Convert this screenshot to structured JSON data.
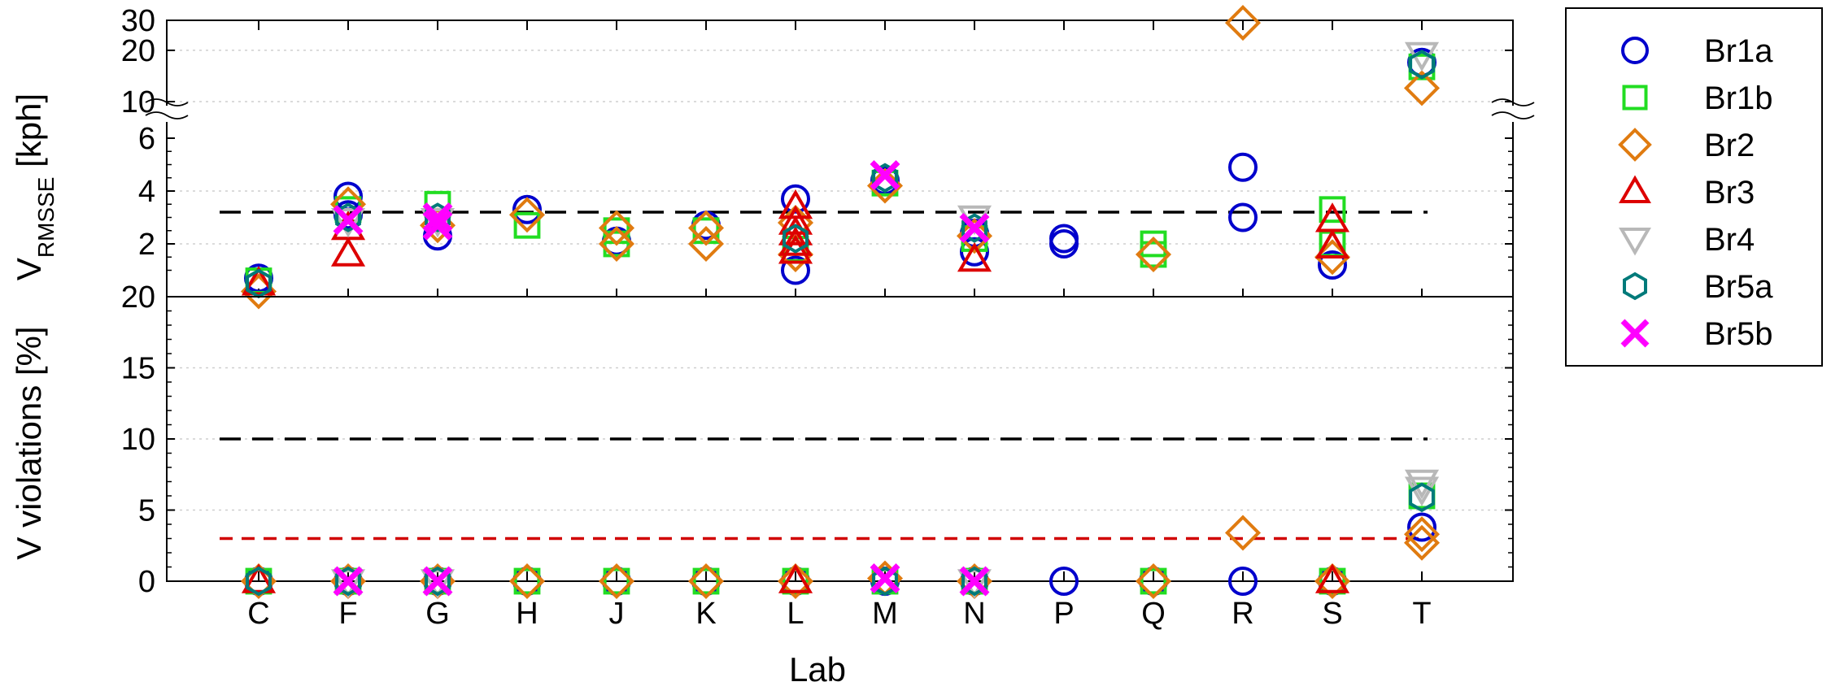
{
  "chart_data": [
    {
      "type": "scatter",
      "ylabel_main": "V",
      "ylabel_sub": "RMSSE",
      "ylabel_unit": " [kph]",
      "xlabel": "",
      "categories": [
        "C",
        "F",
        "G",
        "H",
        "J",
        "K",
        "L",
        "M",
        "N",
        "P",
        "Q",
        "R",
        "S",
        "T"
      ],
      "scale": "broken-axis",
      "y_ticks_lower": [
        "2",
        "4",
        "6"
      ],
      "y_ticks_upper": [
        "10",
        "20",
        "30"
      ],
      "y_bottom_label": "20",
      "ylim_lower": [
        0,
        6
      ],
      "ylim_upper": [
        10,
        30
      ],
      "threshold": 3.2,
      "series": [
        {
          "name": "Br1a",
          "points": [
            [
              "C",
              0.7
            ],
            [
              "F",
              3.8
            ],
            [
              "F",
              3.1
            ],
            [
              "G",
              2.3
            ],
            [
              "H",
              3.3
            ],
            [
              "J",
              2.1
            ],
            [
              "K",
              2.7
            ],
            [
              "L",
              3.7
            ],
            [
              "L",
              1.0
            ],
            [
              "M",
              4.4
            ],
            [
              "N",
              1.7
            ],
            [
              "N",
              2.4
            ],
            [
              "P",
              2.2
            ],
            [
              "P",
              2.0
            ],
            [
              "R",
              4.9
            ],
            [
              "R",
              3.0
            ],
            [
              "S",
              1.2
            ],
            [
              "T",
              17
            ]
          ]
        },
        {
          "name": "Br1b",
          "points": [
            [
              "C",
              0.6
            ],
            [
              "F",
              3.3
            ],
            [
              "G",
              3.5
            ],
            [
              "H",
              2.7
            ],
            [
              "J",
              2.0
            ],
            [
              "J",
              2.5
            ],
            [
              "K",
              2.5
            ],
            [
              "L",
              1.8
            ],
            [
              "M",
              4.3
            ],
            [
              "N",
              2.2
            ],
            [
              "Q",
              2.0
            ],
            [
              "Q",
              1.6
            ],
            [
              "S",
              3.3
            ],
            [
              "S",
              2.0
            ],
            [
              "T",
              16
            ]
          ]
        },
        {
          "name": "Br2",
          "points": [
            [
              "C",
              0.2
            ],
            [
              "F",
              3.5
            ],
            [
              "G",
              2.7
            ],
            [
              "H",
              3.1
            ],
            [
              "J",
              2.6
            ],
            [
              "J",
              2.0
            ],
            [
              "K",
              2.6
            ],
            [
              "K",
              2.0
            ],
            [
              "L",
              2.8
            ],
            [
              "L",
              1.6
            ],
            [
              "M",
              4.2
            ],
            [
              "N",
              2.3
            ],
            [
              "Q",
              1.6
            ],
            [
              "R",
              29
            ],
            [
              "S",
              1.5
            ],
            [
              "T",
              12
            ]
          ]
        },
        {
          "name": "Br3",
          "points": [
            [
              "C",
              0.5
            ],
            [
              "F",
              1.6
            ],
            [
              "F",
              2.6
            ],
            [
              "L",
              3.4
            ],
            [
              "L",
              2.8
            ],
            [
              "L",
              2.4
            ],
            [
              "L",
              2.0
            ],
            [
              "L",
              1.7
            ],
            [
              "N",
              1.4
            ],
            [
              "S",
              2.9
            ],
            [
              "S",
              1.9
            ]
          ]
        },
        {
          "name": "Br4",
          "points": [
            [
              "F",
              2.9
            ],
            [
              "G",
              2.9
            ],
            [
              "N",
              3.0
            ],
            [
              "T",
              19
            ]
          ]
        },
        {
          "name": "Br5a",
          "points": [
            [
              "C",
              0.5
            ],
            [
              "F",
              3.0
            ],
            [
              "G",
              3.0
            ],
            [
              "L",
              2.2
            ],
            [
              "M",
              4.5
            ],
            [
              "N",
              2.6
            ],
            [
              "T",
              16.5
            ]
          ]
        },
        {
          "name": "Br5b",
          "points": [
            [
              "F",
              2.9
            ],
            [
              "G",
              2.7
            ],
            [
              "G",
              3.0
            ],
            [
              "M",
              4.6
            ],
            [
              "N",
              2.6
            ]
          ]
        }
      ]
    },
    {
      "type": "scatter",
      "ylabel": "V violations [%]",
      "xlabel": "Lab",
      "categories": [
        "C",
        "F",
        "G",
        "H",
        "J",
        "K",
        "L",
        "M",
        "N",
        "P",
        "Q",
        "R",
        "S",
        "T"
      ],
      "y_ticks": [
        "0",
        "5",
        "10",
        "15"
      ],
      "ylim": [
        0,
        20
      ],
      "thresholds": [
        {
          "value": 10,
          "color": "#000000"
        },
        {
          "value": 3,
          "color": "#d10000"
        }
      ],
      "series": [
        {
          "name": "Br1a",
          "points": [
            [
              "C",
              0
            ],
            [
              "F",
              0
            ],
            [
              "G",
              0
            ],
            [
              "H",
              0
            ],
            [
              "J",
              0
            ],
            [
              "K",
              0
            ],
            [
              "L",
              0
            ],
            [
              "M",
              0
            ],
            [
              "N",
              0
            ],
            [
              "P",
              0
            ],
            [
              "Q",
              0
            ],
            [
              "R",
              0
            ],
            [
              "S",
              0
            ],
            [
              "T",
              3.8
            ]
          ]
        },
        {
          "name": "Br1b",
          "points": [
            [
              "C",
              0
            ],
            [
              "F",
              0
            ],
            [
              "G",
              0
            ],
            [
              "H",
              0
            ],
            [
              "J",
              0
            ],
            [
              "K",
              0
            ],
            [
              "L",
              0
            ],
            [
              "M",
              0
            ],
            [
              "N",
              0
            ],
            [
              "Q",
              0
            ],
            [
              "S",
              0
            ],
            [
              "T",
              6.0
            ]
          ]
        },
        {
          "name": "Br2",
          "points": [
            [
              "C",
              0
            ],
            [
              "F",
              0
            ],
            [
              "G",
              0
            ],
            [
              "H",
              0
            ],
            [
              "J",
              0
            ],
            [
              "K",
              0
            ],
            [
              "L",
              0
            ],
            [
              "M",
              0.2
            ],
            [
              "N",
              0
            ],
            [
              "Q",
              0
            ],
            [
              "R",
              3.4
            ],
            [
              "S",
              0
            ],
            [
              "T",
              2.7
            ],
            [
              "T",
              3.3
            ]
          ]
        },
        {
          "name": "Br3",
          "points": [
            [
              "C",
              0
            ],
            [
              "L",
              0
            ],
            [
              "S",
              0
            ]
          ]
        },
        {
          "name": "Br4",
          "points": [
            [
              "F",
              0
            ],
            [
              "G",
              0
            ],
            [
              "N",
              0
            ],
            [
              "T",
              7.0
            ],
            [
              "T",
              6.5
            ]
          ]
        },
        {
          "name": "Br5a",
          "points": [
            [
              "C",
              0
            ],
            [
              "F",
              0
            ],
            [
              "G",
              0
            ],
            [
              "M",
              0
            ],
            [
              "N",
              0
            ],
            [
              "T",
              5.9
            ]
          ]
        },
        {
          "name": "Br5b",
          "points": [
            [
              "F",
              0
            ],
            [
              "G",
              0
            ],
            [
              "M",
              0.2
            ],
            [
              "N",
              0
            ]
          ]
        }
      ]
    }
  ],
  "legend": {
    "placement": "right",
    "entries": [
      {
        "name": "Br1a",
        "marker": "circle",
        "color": "#0000cc"
      },
      {
        "name": "Br1b",
        "marker": "square",
        "color": "#22dd22"
      },
      {
        "name": "Br2",
        "marker": "diamond",
        "color": "#e07b10"
      },
      {
        "name": "Br3",
        "marker": "triangle-up",
        "color": "#dd0000"
      },
      {
        "name": "Br4",
        "marker": "triangle-down",
        "color": "#b8b8b8"
      },
      {
        "name": "Br5a",
        "marker": "hexagon",
        "color": "#007a7a"
      },
      {
        "name": "Br5b",
        "marker": "x",
        "color": "#ff00ff"
      }
    ]
  }
}
